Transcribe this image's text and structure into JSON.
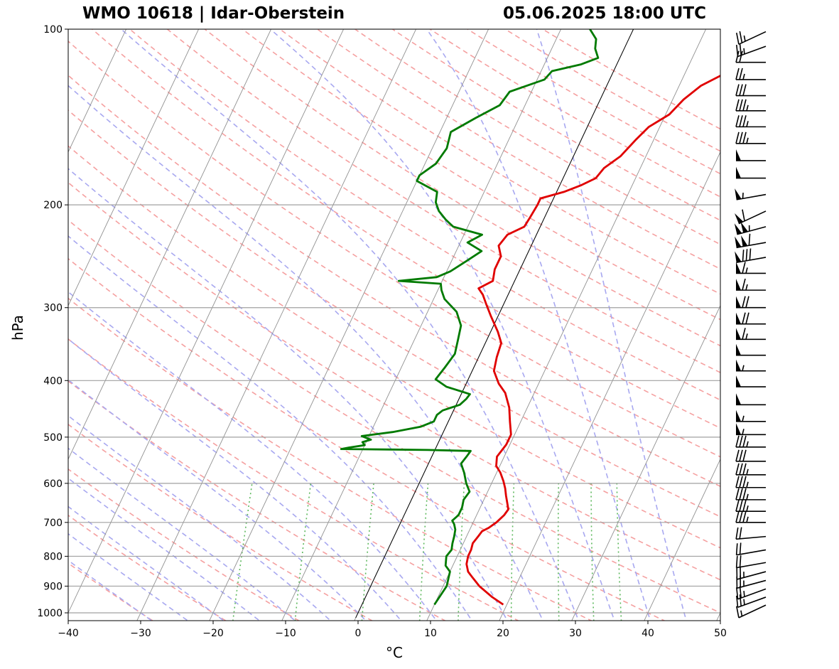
{
  "title": {
    "left": "WMO 10618 | Idar-Oberstein",
    "right": "05.06.2025 18:00 UTC"
  },
  "colors": {
    "temperature": "#e00000",
    "dewpoint": "#007a00",
    "dry_adiabat": "#f5a0a0",
    "moist_adiabat": "#a8a8f0",
    "mixing_ratio": "#5cb85c",
    "isotherm": "#909090",
    "isobar": "#a0a0a0",
    "parcel": "#000000"
  },
  "chart_data": {
    "type": "line",
    "subtype": "skew-T log-p diagram",
    "xlabel": "°C",
    "ylabel": "hPa",
    "xlim": [
      -40,
      50
    ],
    "ylim": [
      1020,
      100
    ],
    "x_ticks": [
      -40,
      -30,
      -20,
      -10,
      0,
      10,
      20,
      30,
      40,
      50
    ],
    "x_tick_labels": [
      "−40",
      "−30",
      "−20",
      "−10",
      "0",
      "10",
      "20",
      "30",
      "40",
      "50"
    ],
    "y_ticks": [
      100,
      200,
      300,
      400,
      500,
      600,
      700,
      800,
      900,
      1000
    ],
    "y_tick_labels": [
      "100",
      "200",
      "300",
      "400",
      "500",
      "600",
      "700",
      "800",
      "900",
      "1000"
    ],
    "skew_deg_per_decade": 38,
    "series": [
      {
        "name": "Temperature",
        "color": "#e00000",
        "points": [
          [
            968,
            19.5
          ],
          [
            940,
            17.5
          ],
          [
            900,
            15
          ],
          [
            870,
            13.5
          ],
          [
            850,
            12.5
          ],
          [
            825,
            11.8
          ],
          [
            800,
            11.5
          ],
          [
            780,
            11.5
          ],
          [
            760,
            11.3
          ],
          [
            740,
            11.6
          ],
          [
            725,
            11.8
          ],
          [
            715,
            12.5
          ],
          [
            700,
            13.2
          ],
          [
            690,
            13.5
          ],
          [
            680,
            13.8
          ],
          [
            665,
            14
          ],
          [
            650,
            13.5
          ],
          [
            630,
            12.8
          ],
          [
            612,
            12.2
          ],
          [
            595,
            11.5
          ],
          [
            575,
            10.5
          ],
          [
            560,
            9.5
          ],
          [
            540,
            9
          ],
          [
            530,
            9.2
          ],
          [
            515,
            9.5
          ],
          [
            495,
            9.5
          ],
          [
            470,
            8.5
          ],
          [
            445,
            7.5
          ],
          [
            420,
            6
          ],
          [
            405,
            4.5
          ],
          [
            385,
            3
          ],
          [
            365,
            2.5
          ],
          [
            345,
            2.2
          ],
          [
            330,
            1
          ],
          [
            310,
            -1
          ],
          [
            295,
            -2.5
          ],
          [
            285,
            -3.5
          ],
          [
            278,
            -4.5
          ],
          [
            270,
            -3
          ],
          [
            258,
            -3.5
          ],
          [
            245,
            -3.5
          ],
          [
            235,
            -4.5
          ],
          [
            225,
            -4
          ],
          [
            218,
            -2.2
          ],
          [
            210,
            -2
          ],
          [
            200,
            -1.8
          ],
          [
            195,
            -1.8
          ],
          [
            190,
            1
          ],
          [
            185,
            3
          ],
          [
            180,
            4.5
          ],
          [
            173,
            5
          ],
          [
            165,
            6.5
          ],
          [
            155,
            7.5
          ],
          [
            147,
            8.5
          ],
          [
            140,
            10.5
          ],
          [
            132,
            11.5
          ],
          [
            125,
            13
          ],
          [
            118,
            16
          ],
          [
            113,
            16.8
          ],
          [
            108,
            16.2
          ],
          [
            104,
            15.8
          ],
          [
            100,
            15.5
          ]
        ]
      },
      {
        "name": "Dewpoint",
        "color": "#007a00",
        "points": [
          [
            968,
            10
          ],
          [
            940,
            10.2
          ],
          [
            900,
            10.5
          ],
          [
            870,
            10.2
          ],
          [
            850,
            10
          ],
          [
            830,
            9
          ],
          [
            800,
            8.5
          ],
          [
            780,
            8.8
          ],
          [
            760,
            8.5
          ],
          [
            740,
            8.3
          ],
          [
            720,
            8
          ],
          [
            705,
            7.5
          ],
          [
            695,
            7
          ],
          [
            680,
            7.5
          ],
          [
            660,
            7.5
          ],
          [
            640,
            7.2
          ],
          [
            620,
            7.5
          ],
          [
            600,
            6.5
          ],
          [
            575,
            5.5
          ],
          [
            555,
            4.5
          ],
          [
            540,
            4.8
          ],
          [
            528,
            5
          ],
          [
            526,
            -1
          ],
          [
            525,
            -6
          ],
          [
            524,
            -13
          ],
          [
            521,
            -12
          ],
          [
            516,
            -10
          ],
          [
            510,
            -10.5
          ],
          [
            505,
            -9.5
          ],
          [
            498,
            -11
          ],
          [
            490,
            -7
          ],
          [
            480,
            -3.5
          ],
          [
            470,
            -2
          ],
          [
            458,
            -2
          ],
          [
            450,
            -1.5
          ],
          [
            440,
            0.5
          ],
          [
            430,
            1
          ],
          [
            422,
            1.2
          ],
          [
            418,
            0
          ],
          [
            410,
            -2.5
          ],
          [
            398,
            -4.5
          ],
          [
            380,
            -4
          ],
          [
            360,
            -3.5
          ],
          [
            340,
            -4
          ],
          [
            322,
            -4.5
          ],
          [
            305,
            -6
          ],
          [
            290,
            -8.5
          ],
          [
            280,
            -9.5
          ],
          [
            273,
            -10
          ],
          [
            270,
            -16
          ],
          [
            266,
            -11
          ],
          [
            260,
            -9.5
          ],
          [
            250,
            -8
          ],
          [
            240,
            -6.5
          ],
          [
            232,
            -9
          ],
          [
            225,
            -7.5
          ],
          [
            218,
            -12
          ],
          [
            212,
            -13.5
          ],
          [
            205,
            -15
          ],
          [
            198,
            -16
          ],
          [
            190,
            -16.5
          ],
          [
            182,
            -20
          ],
          [
            178,
            -20
          ],
          [
            170,
            -18.5
          ],
          [
            160,
            -18
          ],
          [
            150,
            -18.5
          ],
          [
            142,
            -16
          ],
          [
            135,
            -13.5
          ],
          [
            128,
            -13
          ],
          [
            122,
            -9
          ],
          [
            118,
            -8.5
          ],
          [
            115,
            -5
          ],
          [
            112,
            -3
          ],
          [
            108,
            -4
          ],
          [
            104,
            -4.5
          ],
          [
            100,
            -6
          ]
        ]
      }
    ],
    "parcel_line": {
      "name": "Isotherm 0°C (highlighted)",
      "points": [
        [
          1020,
          0
        ],
        [
          100,
          0
        ]
      ]
    },
    "wind_barbs": [
      {
        "p": 970,
        "dir": 240,
        "kt": 15
      },
      {
        "p": 940,
        "dir": 245,
        "kt": 25
      },
      {
        "p": 910,
        "dir": 245,
        "kt": 25
      },
      {
        "p": 880,
        "dir": 250,
        "kt": 25
      },
      {
        "p": 850,
        "dir": 250,
        "kt": 25
      },
      {
        "p": 820,
        "dir": 255,
        "kt": 20
      },
      {
        "p": 780,
        "dir": 255,
        "kt": 20
      },
      {
        "p": 740,
        "dir": 260,
        "kt": 20
      },
      {
        "p": 700,
        "dir": 265,
        "kt": 35
      },
      {
        "p": 670,
        "dir": 265,
        "kt": 35
      },
      {
        "p": 640,
        "dir": 265,
        "kt": 35
      },
      {
        "p": 610,
        "dir": 265,
        "kt": 35
      },
      {
        "p": 580,
        "dir": 265,
        "kt": 35
      },
      {
        "p": 550,
        "dir": 265,
        "kt": 30
      },
      {
        "p": 520,
        "dir": 265,
        "kt": 35
      },
      {
        "p": 495,
        "dir": 265,
        "kt": 55
      },
      {
        "p": 470,
        "dir": 265,
        "kt": 55
      },
      {
        "p": 440,
        "dir": 265,
        "kt": 50
      },
      {
        "p": 410,
        "dir": 265,
        "kt": 50
      },
      {
        "p": 385,
        "dir": 265,
        "kt": 55
      },
      {
        "p": 362,
        "dir": 265,
        "kt": 50
      },
      {
        "p": 340,
        "dir": 265,
        "kt": 65
      },
      {
        "p": 320,
        "dir": 265,
        "kt": 70
      },
      {
        "p": 300,
        "dir": 265,
        "kt": 70
      },
      {
        "p": 280,
        "dir": 265,
        "kt": 65
      },
      {
        "p": 262,
        "dir": 265,
        "kt": 65
      },
      {
        "p": 246,
        "dir": 255,
        "kt": 80
      },
      {
        "p": 232,
        "dir": 255,
        "kt": 110
      },
      {
        "p": 218,
        "dir": 250,
        "kt": 105
      },
      {
        "p": 205,
        "dir": 240,
        "kt": 60
      },
      {
        "p": 192,
        "dir": 255,
        "kt": 55
      },
      {
        "p": 180,
        "dir": 265,
        "kt": 50
      },
      {
        "p": 168,
        "dir": 265,
        "kt": 50
      },
      {
        "p": 157,
        "dir": 265,
        "kt": 35
      },
      {
        "p": 147,
        "dir": 265,
        "kt": 35
      },
      {
        "p": 138,
        "dir": 265,
        "kt": 35
      },
      {
        "p": 130,
        "dir": 265,
        "kt": 30
      },
      {
        "p": 122,
        "dir": 265,
        "kt": 25
      },
      {
        "p": 114,
        "dir": 265,
        "kt": 20
      },
      {
        "p": 107,
        "dir": 245,
        "kt": 25
      },
      {
        "p": 101,
        "dir": 240,
        "kt": 25
      }
    ]
  }
}
